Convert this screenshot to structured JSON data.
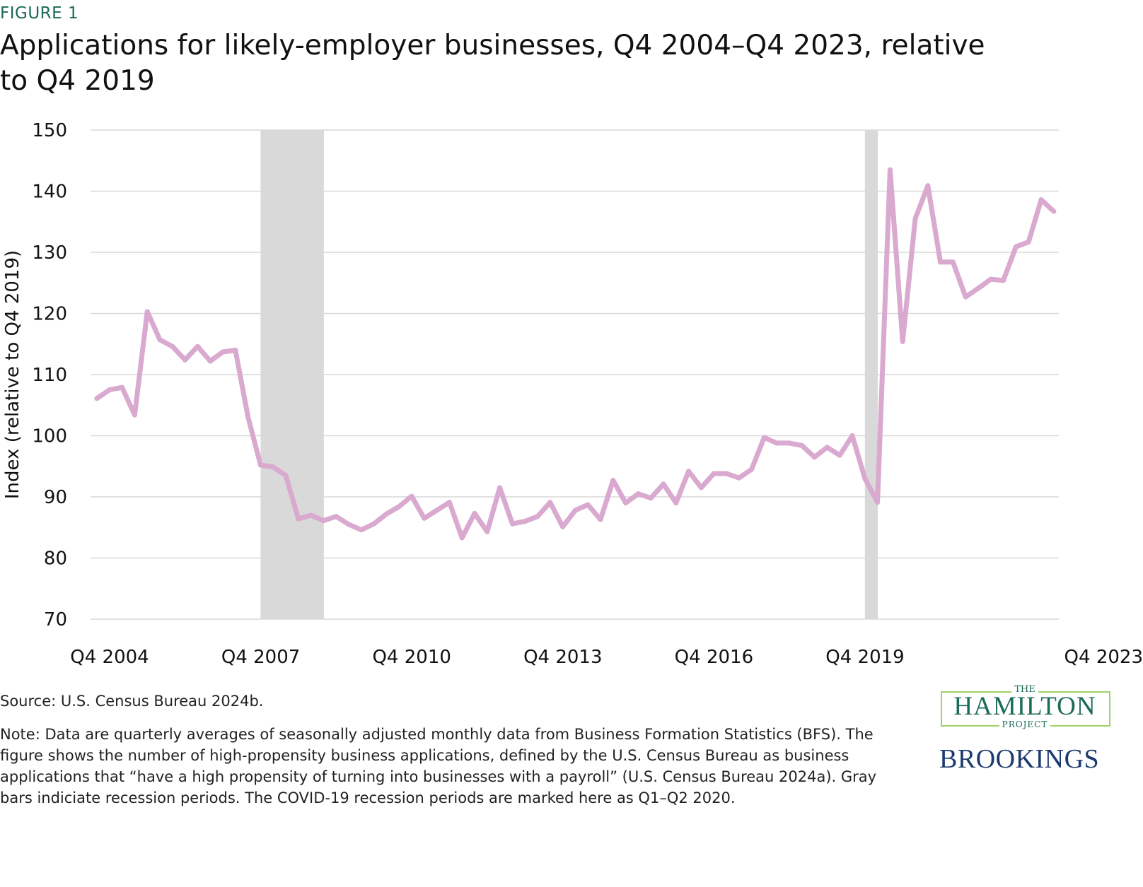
{
  "figure_label": "FIGURE 1",
  "title": "Applications for likely-employer businesses, Q4 2004–Q4 2023, relative to Q4 2019",
  "source": "Source: U.S. Census Bureau 2024b.",
  "note": "Note: Data are quarterly averages of seasonally adjusted monthly data from Business Formation Statistics (BFS). The figure shows the number of high-propensity business applications, defined by the U.S. Census Bureau as business applications that “have a high propensity of turning into businesses with a payroll” (U.S. Census Bureau 2024a). Gray bars indiciate recession periods. The COVID-19 recession periods are marked here as Q1–Q2 2020.",
  "logos": {
    "hamilton_the": "THE",
    "hamilton_name": "HAMILTON",
    "hamilton_project": "PROJECT",
    "brookings": "BROOKINGS"
  },
  "chart_data": {
    "type": "line",
    "title": "Applications for likely-employer businesses, Q4 2004–Q4 2023, relative to Q4 2019",
    "xlabel": "",
    "ylabel": "Index (relative to Q4 2019)",
    "ylim": [
      70,
      150
    ],
    "yticks": [
      70,
      80,
      90,
      100,
      110,
      120,
      130,
      140,
      150
    ],
    "grid": true,
    "line_color": "#d9a9cf",
    "recession_color": "#d9d9d9",
    "xtick_labels": [
      "Q4 2004",
      "Q4 2007",
      "Q4 2010",
      "Q4 2013",
      "Q4 2016",
      "Q4 2019",
      "Q4 2023"
    ],
    "recessions": [
      [
        "Q1 2008",
        "Q2 2009"
      ],
      [
        "Q1 2020",
        "Q2 2020"
      ]
    ],
    "x": [
      "Q4 2004",
      "Q1 2005",
      "Q2 2005",
      "Q3 2005",
      "Q4 2005",
      "Q1 2006",
      "Q2 2006",
      "Q3 2006",
      "Q4 2006",
      "Q1 2007",
      "Q2 2007",
      "Q3 2007",
      "Q4 2007",
      "Q1 2008",
      "Q2 2008",
      "Q3 2008",
      "Q4 2008",
      "Q1 2009",
      "Q2 2009",
      "Q3 2009",
      "Q4 2009",
      "Q1 2010",
      "Q2 2010",
      "Q3 2010",
      "Q4 2010",
      "Q1 2011",
      "Q2 2011",
      "Q3 2011",
      "Q4 2011",
      "Q1 2012",
      "Q2 2012",
      "Q3 2012",
      "Q4 2012",
      "Q1 2013",
      "Q2 2013",
      "Q3 2013",
      "Q4 2013",
      "Q1 2014",
      "Q2 2014",
      "Q3 2014",
      "Q4 2014",
      "Q1 2015",
      "Q2 2015",
      "Q3 2015",
      "Q4 2015",
      "Q1 2016",
      "Q2 2016",
      "Q3 2016",
      "Q4 2016",
      "Q1 2017",
      "Q2 2017",
      "Q3 2017",
      "Q4 2017",
      "Q1 2018",
      "Q2 2018",
      "Q3 2018",
      "Q4 2018",
      "Q1 2019",
      "Q2 2019",
      "Q3 2019",
      "Q4 2019",
      "Q1 2020",
      "Q2 2020",
      "Q3 2020",
      "Q4 2020",
      "Q1 2021",
      "Q2 2021",
      "Q3 2021",
      "Q4 2021",
      "Q1 2022",
      "Q2 2022",
      "Q3 2022",
      "Q4 2022",
      "Q1 2023",
      "Q2 2023",
      "Q3 2023",
      "Q4 2023"
    ],
    "values": [
      106.1,
      107.5,
      107.9,
      103.4,
      120.3,
      115.7,
      114.6,
      112.4,
      114.6,
      112.2,
      113.7,
      114.0,
      103.1,
      95.2,
      94.9,
      93.5,
      86.4,
      87.0,
      86.1,
      86.8,
      85.5,
      84.6,
      85.6,
      87.2,
      88.4,
      90.1,
      86.5,
      87.8,
      89.1,
      83.3,
      87.3,
      84.3,
      91.5,
      85.6,
      86.0,
      86.8,
      89.1,
      85.1,
      87.8,
      88.7,
      86.3,
      92.7,
      89.0,
      90.5,
      89.8,
      92.1,
      89.0,
      94.2,
      91.5,
      93.8,
      93.8,
      93.1,
      94.5,
      99.7,
      98.8,
      98.8,
      98.4,
      96.5,
      98.1,
      96.8,
      100.0,
      93.0,
      89.1,
      143.5,
      115.4,
      135.5,
      140.9,
      128.4,
      128.4,
      122.7,
      124.1,
      125.6,
      125.4,
      130.9,
      131.7,
      138.6,
      136.7
    ]
  }
}
